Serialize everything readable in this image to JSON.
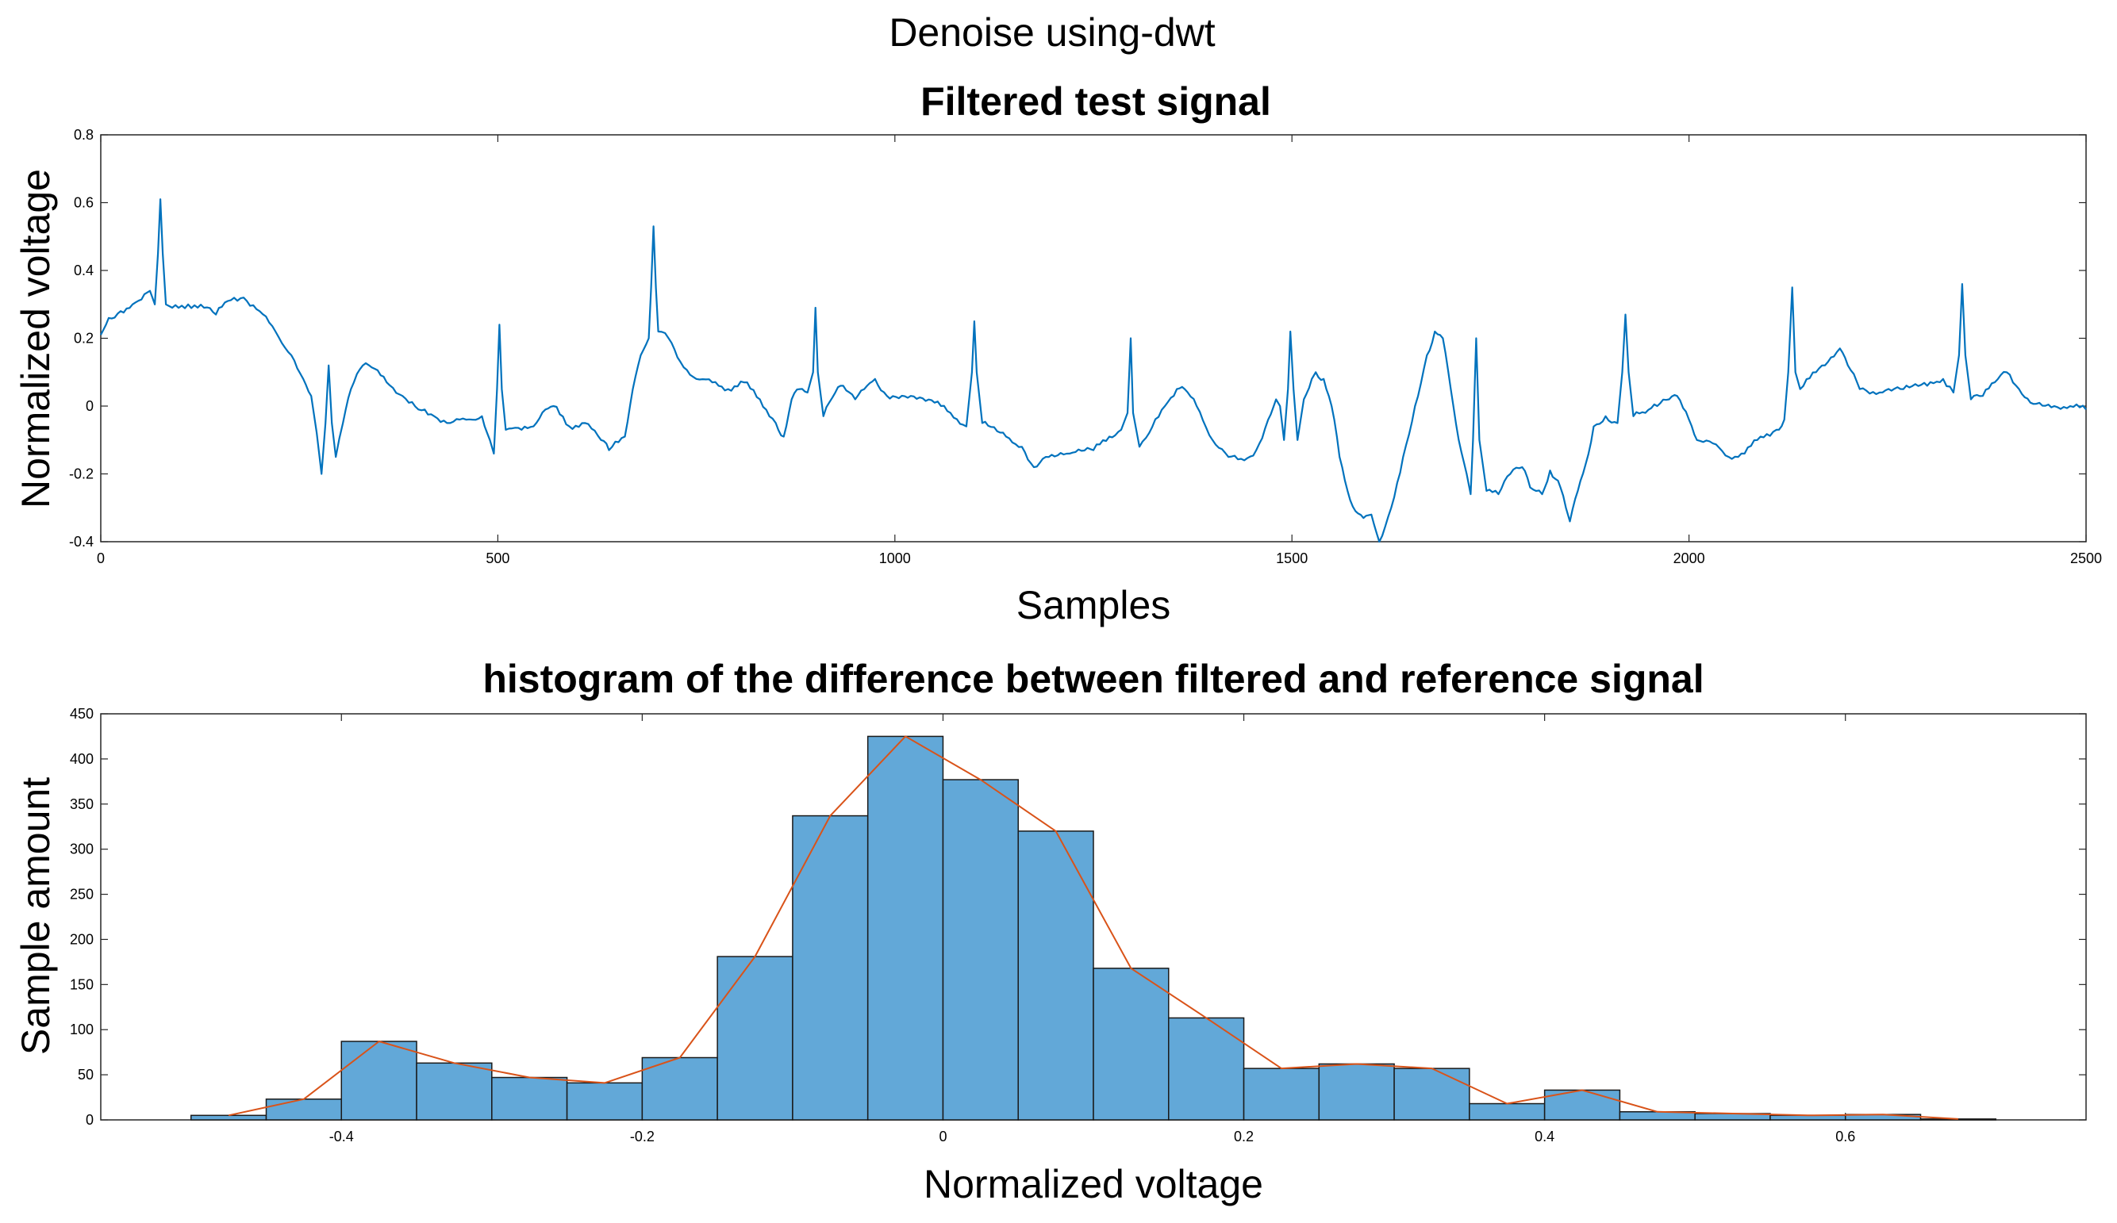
{
  "figure": {
    "suptitle": "Denoise using-dwt"
  },
  "chart_data": [
    {
      "type": "line",
      "title": "Filtered test signal",
      "xlabel": "Samples",
      "ylabel": "Normalized voltage",
      "xlim": [
        0,
        2500
      ],
      "ylim": [
        -0.4,
        0.8
      ],
      "xticks": [
        0,
        500,
        1000,
        1500,
        2000,
        2500
      ],
      "xtick_labels": [
        "0",
        "500",
        "1000",
        "1500",
        "2000",
        "2500"
      ],
      "yticks": [
        -0.4,
        -0.2,
        0,
        0.2,
        0.4,
        0.6,
        0.8
      ],
      "ytick_labels": [
        "-0.4",
        "-0.2",
        "0",
        "0.2",
        "0.4",
        "0.6",
        "0.8"
      ],
      "grid": false,
      "color": "#0072BD",
      "series": [
        {
          "points": [
            [
              0,
              0.21
            ],
            [
              10,
              0.26
            ],
            [
              25,
              0.28
            ],
            [
              40,
              0.3
            ],
            [
              55,
              0.33
            ],
            [
              62,
              0.34
            ],
            [
              68,
              0.3
            ],
            [
              72,
              0.45
            ],
            [
              75,
              0.61
            ],
            [
              78,
              0.45
            ],
            [
              82,
              0.3
            ],
            [
              90,
              0.29
            ],
            [
              110,
              0.3
            ],
            [
              130,
              0.29
            ],
            [
              145,
              0.27
            ],
            [
              160,
              0.31
            ],
            [
              180,
              0.32
            ],
            [
              200,
              0.28
            ],
            [
              220,
              0.22
            ],
            [
              240,
              0.15
            ],
            [
              255,
              0.08
            ],
            [
              265,
              0.03
            ],
            [
              272,
              -0.08
            ],
            [
              278,
              -0.2
            ],
            [
              283,
              -0.05
            ],
            [
              287,
              0.12
            ],
            [
              291,
              -0.05
            ],
            [
              296,
              -0.15
            ],
            [
              305,
              -0.05
            ],
            [
              315,
              0.05
            ],
            [
              330,
              0.12
            ],
            [
              345,
              0.11
            ],
            [
              360,
              0.07
            ],
            [
              380,
              0.03
            ],
            [
              400,
              -0.01
            ],
            [
              420,
              -0.03
            ],
            [
              440,
              -0.05
            ],
            [
              460,
              -0.04
            ],
            [
              480,
              -0.03
            ],
            [
              490,
              -0.1
            ],
            [
              495,
              -0.14
            ],
            [
              499,
              0.05
            ],
            [
              502,
              0.24
            ],
            [
              505,
              0.05
            ],
            [
              510,
              -0.07
            ],
            [
              530,
              -0.07
            ],
            [
              545,
              -0.06
            ],
            [
              560,
              -0.01
            ],
            [
              570,
              0.0
            ],
            [
              590,
              -0.06
            ],
            [
              610,
              -0.05
            ],
            [
              630,
              -0.1
            ],
            [
              640,
              -0.13
            ],
            [
              660,
              -0.09
            ],
            [
              670,
              0.05
            ],
            [
              680,
              0.15
            ],
            [
              690,
              0.2
            ],
            [
              693,
              0.35
            ],
            [
              696,
              0.53
            ],
            [
              699,
              0.35
            ],
            [
              702,
              0.22
            ],
            [
              715,
              0.2
            ],
            [
              730,
              0.13
            ],
            [
              750,
              0.08
            ],
            [
              770,
              0.07
            ],
            [
              790,
              0.05
            ],
            [
              810,
              0.07
            ],
            [
              830,
              0.02
            ],
            [
              850,
              -0.05
            ],
            [
              860,
              -0.09
            ],
            [
              870,
              0.02
            ],
            [
              880,
              0.05
            ],
            [
              890,
              0.04
            ],
            [
              897,
              0.1
            ],
            [
              900,
              0.29
            ],
            [
              903,
              0.1
            ],
            [
              910,
              -0.03
            ],
            [
              925,
              0.04
            ],
            [
              935,
              0.06
            ],
            [
              950,
              0.02
            ],
            [
              965,
              0.06
            ],
            [
              975,
              0.08
            ],
            [
              990,
              0.03
            ],
            [
              1020,
              0.03
            ],
            [
              1050,
              0.01
            ],
            [
              1070,
              -0.02
            ],
            [
              1090,
              -0.06
            ],
            [
              1097,
              0.1
            ],
            [
              1100,
              0.25
            ],
            [
              1103,
              0.1
            ],
            [
              1110,
              -0.05
            ],
            [
              1140,
              -0.09
            ],
            [
              1160,
              -0.12
            ],
            [
              1175,
              -0.18
            ],
            [
              1190,
              -0.15
            ],
            [
              1220,
              -0.14
            ],
            [
              1250,
              -0.13
            ],
            [
              1270,
              -0.09
            ],
            [
              1285,
              -0.07
            ],
            [
              1293,
              -0.02
            ],
            [
              1297,
              0.2
            ],
            [
              1300,
              -0.02
            ],
            [
              1308,
              -0.12
            ],
            [
              1320,
              -0.08
            ],
            [
              1340,
              0.0
            ],
            [
              1355,
              0.05
            ],
            [
              1365,
              0.05
            ],
            [
              1380,
              0.0
            ],
            [
              1400,
              -0.1
            ],
            [
              1420,
              -0.15
            ],
            [
              1440,
              -0.16
            ],
            [
              1455,
              -0.13
            ],
            [
              1470,
              -0.04
            ],
            [
              1480,
              0.02
            ],
            [
              1485,
              0.0
            ],
            [
              1490,
              -0.1
            ],
            [
              1495,
              0.05
            ],
            [
              1498,
              0.22
            ],
            [
              1502,
              0.05
            ],
            [
              1507,
              -0.1
            ],
            [
              1515,
              0.02
            ],
            [
              1525,
              0.08
            ],
            [
              1530,
              0.1
            ],
            [
              1540,
              0.08
            ],
            [
              1550,
              0.0
            ],
            [
              1560,
              -0.15
            ],
            [
              1570,
              -0.25
            ],
            [
              1580,
              -0.31
            ],
            [
              1590,
              -0.33
            ],
            [
              1600,
              -0.32
            ],
            [
              1610,
              -0.4
            ],
            [
              1625,
              -0.3
            ],
            [
              1640,
              -0.15
            ],
            [
              1655,
              0.0
            ],
            [
              1670,
              0.15
            ],
            [
              1680,
              0.22
            ],
            [
              1690,
              0.2
            ],
            [
              1700,
              0.05
            ],
            [
              1710,
              -0.1
            ],
            [
              1720,
              -0.2
            ],
            [
              1725,
              -0.26
            ],
            [
              1728,
              -0.1
            ],
            [
              1732,
              0.2
            ],
            [
              1736,
              -0.1
            ],
            [
              1745,
              -0.25
            ],
            [
              1760,
              -0.26
            ],
            [
              1775,
              -0.2
            ],
            [
              1790,
              -0.18
            ],
            [
              1800,
              -0.24
            ],
            [
              1815,
              -0.26
            ],
            [
              1825,
              -0.19
            ],
            [
              1835,
              -0.22
            ],
            [
              1845,
              -0.3
            ],
            [
              1850,
              -0.34
            ],
            [
              1860,
              -0.25
            ],
            [
              1870,
              -0.17
            ],
            [
              1880,
              -0.06
            ],
            [
              1895,
              -0.03
            ],
            [
              1910,
              -0.05
            ],
            [
              1916,
              0.1
            ],
            [
              1920,
              0.27
            ],
            [
              1924,
              0.1
            ],
            [
              1930,
              -0.03
            ],
            [
              1945,
              -0.02
            ],
            [
              1960,
              0.0
            ],
            [
              1975,
              0.02
            ],
            [
              1985,
              0.03
            ],
            [
              2000,
              -0.04
            ],
            [
              2010,
              -0.1
            ],
            [
              2030,
              -0.11
            ],
            [
              2050,
              -0.15
            ],
            [
              2070,
              -0.14
            ],
            [
              2090,
              -0.09
            ],
            [
              2110,
              -0.07
            ],
            [
              2120,
              -0.04
            ],
            [
              2125,
              0.1
            ],
            [
              2130,
              0.35
            ],
            [
              2134,
              0.1
            ],
            [
              2140,
              0.05
            ],
            [
              2160,
              0.1
            ],
            [
              2175,
              0.13
            ],
            [
              2190,
              0.17
            ],
            [
              2200,
              0.12
            ],
            [
              2215,
              0.05
            ],
            [
              2240,
              0.04
            ],
            [
              2270,
              0.05
            ],
            [
              2300,
              0.06
            ],
            [
              2320,
              0.08
            ],
            [
              2333,
              0.04
            ],
            [
              2340,
              0.15
            ],
            [
              2344,
              0.36
            ],
            [
              2348,
              0.15
            ],
            [
              2355,
              0.02
            ],
            [
              2370,
              0.03
            ],
            [
              2385,
              0.07
            ],
            [
              2400,
              0.1
            ],
            [
              2412,
              0.06
            ],
            [
              2430,
              0.01
            ],
            [
              2460,
              0.0
            ],
            [
              2480,
              0.0
            ],
            [
              2500,
              -0.01
            ]
          ]
        }
      ]
    },
    {
      "type": "bar",
      "title": "histogram of the difference between filtered and reference signal",
      "xlabel": "Normalized voltage",
      "ylabel": "Sample amount",
      "xlim": [
        -0.56,
        0.76
      ],
      "ylim": [
        0,
        450
      ],
      "xticks": [
        -0.4,
        -0.2,
        0,
        0.2,
        0.4,
        0.6
      ],
      "xtick_labels": [
        "-0.4",
        "-0.2",
        "0",
        "0.2",
        "0.4",
        "0.6"
      ],
      "yticks": [
        0,
        50,
        100,
        150,
        200,
        250,
        300,
        350,
        400,
        450
      ],
      "ytick_labels": [
        "0",
        "50",
        "100",
        "150",
        "200",
        "250",
        "300",
        "350",
        "400",
        "450"
      ],
      "grid": false,
      "bar_color": "#62A8D8",
      "edge_color": "#1a1a1a",
      "curve_color": "#D95319",
      "bin_edges": [
        -0.5,
        -0.45,
        -0.4,
        -0.35,
        -0.3,
        -0.25,
        -0.2,
        -0.15,
        -0.1,
        -0.05,
        0.0,
        0.05,
        0.1,
        0.15,
        0.2,
        0.25,
        0.3,
        0.35,
        0.4,
        0.45,
        0.5,
        0.55,
        0.6,
        0.65,
        0.7
      ],
      "values": [
        5,
        23,
        87,
        63,
        47,
        41,
        69,
        181,
        337,
        425,
        377,
        320,
        168,
        113,
        57,
        62,
        57,
        18,
        33,
        9,
        7,
        5,
        6,
        1
      ],
      "series": [
        {
          "values": [
            5,
            23,
            87,
            63,
            47,
            41,
            69,
            181,
            337,
            425,
            377,
            320,
            168,
            113,
            57,
            62,
            57,
            18,
            33,
            9,
            7,
            5,
            6,
            1
          ]
        }
      ]
    }
  ]
}
